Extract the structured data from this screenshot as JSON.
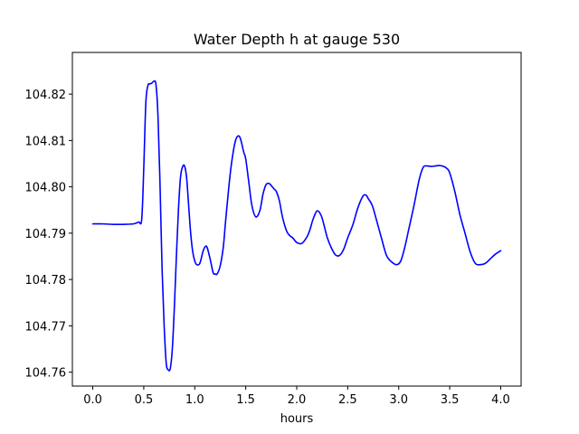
{
  "chart_data": {
    "type": "line",
    "title": "Water Depth h at gauge 530",
    "xlabel": "hours",
    "ylabel": "",
    "xlim": [
      -0.2,
      4.2
    ],
    "ylim": [
      104.757,
      104.829
    ],
    "x_ticks": [
      0.0,
      0.5,
      1.0,
      1.5,
      2.0,
      2.5,
      3.0,
      3.5,
      4.0
    ],
    "x_tick_labels": [
      "0.0",
      "0.5",
      "1.0",
      "1.5",
      "2.0",
      "2.5",
      "3.0",
      "3.5",
      "4.0"
    ],
    "y_ticks": [
      104.76,
      104.77,
      104.78,
      104.79,
      104.8,
      104.81,
      104.82
    ],
    "y_tick_labels": [
      "104.76",
      "104.77",
      "104.78",
      "104.79",
      "104.80",
      "104.81",
      "104.82"
    ],
    "grid": false,
    "series": [
      {
        "color": "#0000ff",
        "x": [
          0.0,
          0.1,
          0.2,
          0.3,
          0.4,
          0.45,
          0.48,
          0.5,
          0.52,
          0.54,
          0.56,
          0.58,
          0.6,
          0.62,
          0.64,
          0.66,
          0.68,
          0.7,
          0.72,
          0.74,
          0.76,
          0.78,
          0.8,
          0.82,
          0.84,
          0.86,
          0.88,
          0.9,
          0.92,
          0.94,
          0.96,
          0.98,
          1.0,
          1.02,
          1.05,
          1.08,
          1.1,
          1.12,
          1.15,
          1.18,
          1.2,
          1.22,
          1.25,
          1.28,
          1.3,
          1.33,
          1.36,
          1.4,
          1.44,
          1.48,
          1.5,
          1.53,
          1.56,
          1.6,
          1.64,
          1.67,
          1.7,
          1.73,
          1.76,
          1.78,
          1.8,
          1.83,
          1.86,
          1.9,
          1.93,
          1.96,
          2.0,
          2.05,
          2.1,
          2.13,
          2.16,
          2.2,
          2.24,
          2.27,
          2.3,
          2.34,
          2.38,
          2.42,
          2.46,
          2.5,
          2.55,
          2.6,
          2.65,
          2.68,
          2.7,
          2.74,
          2.78,
          2.83,
          2.88,
          2.93,
          2.98,
          3.02,
          3.06,
          3.1,
          3.15,
          3.2,
          3.24,
          3.28,
          3.32,
          3.36,
          3.4,
          3.44,
          3.47,
          3.5,
          3.55,
          3.6,
          3.65,
          3.7,
          3.75,
          3.8,
          3.85,
          3.9,
          3.95,
          4.0
        ],
        "y": [
          104.792,
          104.792,
          104.7919,
          104.7919,
          104.792,
          104.7924,
          104.793,
          104.804,
          104.818,
          104.8218,
          104.8222,
          104.8224,
          104.8228,
          104.822,
          104.815,
          104.8,
          104.782,
          104.77,
          104.762,
          104.7605,
          104.7608,
          104.765,
          104.774,
          104.785,
          104.795,
          104.802,
          104.8043,
          104.8045,
          104.802,
          104.796,
          104.79,
          104.786,
          104.784,
          104.7832,
          104.7835,
          104.786,
          104.787,
          104.787,
          104.7845,
          104.7815,
          104.7812,
          104.7812,
          104.783,
          104.787,
          104.792,
          104.799,
          104.805,
          104.81,
          104.8108,
          104.8075,
          104.806,
          104.801,
          104.796,
          104.7935,
          104.795,
          104.7985,
          104.8005,
          104.8007,
          104.8,
          104.7995,
          104.799,
          104.797,
          104.7935,
          104.7905,
          104.7895,
          104.789,
          104.788,
          104.7878,
          104.7892,
          104.7908,
          104.793,
          104.7948,
          104.7938,
          104.7915,
          104.789,
          104.7868,
          104.7853,
          104.7852,
          104.7865,
          104.789,
          104.7918,
          104.7955,
          104.798,
          104.7982,
          104.7975,
          104.796,
          104.793,
          104.789,
          104.7852,
          104.7838,
          104.7832,
          104.784,
          104.787,
          104.791,
          104.796,
          104.8015,
          104.8042,
          104.8045,
          104.8044,
          104.8045,
          104.8046,
          104.8044,
          104.804,
          104.803,
          104.799,
          104.794,
          104.79,
          104.786,
          104.7835,
          104.7832,
          104.7835,
          104.7845,
          104.7855,
          104.7862
        ]
      }
    ]
  }
}
